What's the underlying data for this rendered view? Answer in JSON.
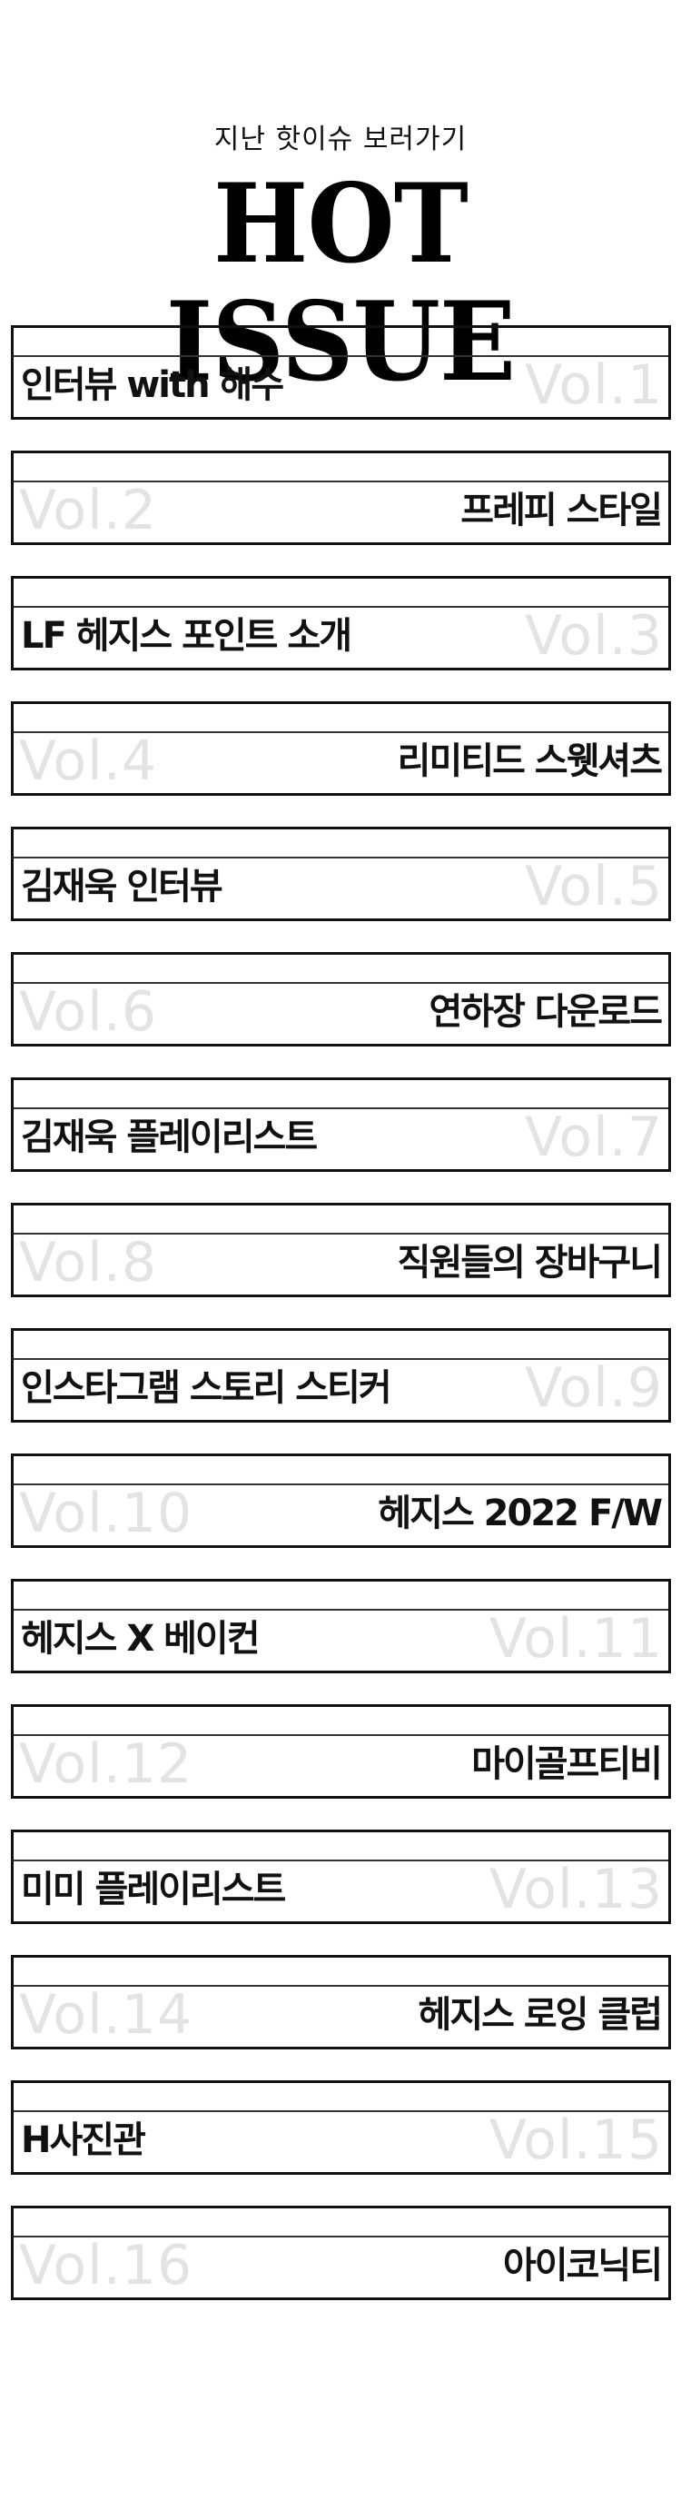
{
  "header": {
    "subtitle": "지난 핫이슈 보러가기",
    "title": "HOT ISSUE"
  },
  "issues": [
    {
      "title": "인터뷰 with 해수",
      "vol": "Vol.1"
    },
    {
      "title": "프레피 스타일",
      "vol": "Vol.2"
    },
    {
      "title": "LF 헤지스 포인트 소개",
      "vol": "Vol.3"
    },
    {
      "title": "리미티드 스웻셔츠",
      "vol": "Vol.4"
    },
    {
      "title": "김재욱 인터뷰",
      "vol": "Vol.5"
    },
    {
      "title": "연하장 다운로드",
      "vol": "Vol.6"
    },
    {
      "title": "김재욱 플레이리스트",
      "vol": "Vol.7"
    },
    {
      "title": "직원들의 장바구니",
      "vol": "Vol.8"
    },
    {
      "title": "인스타그램 스토리 스티커",
      "vol": "Vol.9"
    },
    {
      "title": "헤지스 2022 F/W",
      "vol": "Vol.10"
    },
    {
      "title": "헤지스 X 베이컨",
      "vol": "Vol.11"
    },
    {
      "title": "마이골프티비",
      "vol": "Vol.12"
    },
    {
      "title": "미미 플레이리스트",
      "vol": "Vol.13"
    },
    {
      "title": "헤지스 로잉 클럽",
      "vol": "Vol.14"
    },
    {
      "title": "H사진관",
      "vol": "Vol.15"
    },
    {
      "title": "아이코닉티",
      "vol": "Vol.16"
    }
  ]
}
